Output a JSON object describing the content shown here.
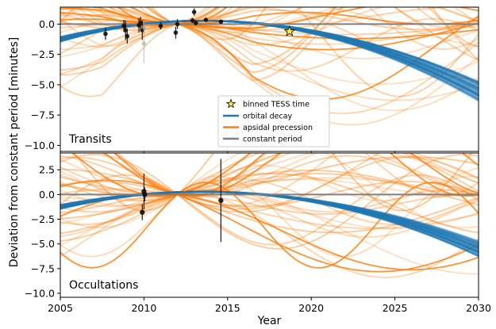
{
  "colors": {
    "decay": "#1f77b4",
    "precession": "#ff7f0e",
    "constant": "#7f7f7f",
    "star": "#ffeb3b"
  },
  "shared": {
    "xlabel": "Year",
    "ylabel": "Deviation from constant period [minutes]",
    "xlim": [
      2005,
      2030
    ],
    "xticks": [
      2005,
      2010,
      2015,
      2020,
      2025,
      2030
    ],
    "tess_time": 2018.7
  },
  "legend": {
    "tess": "binned TESS time",
    "decay": "orbital decay",
    "precession": "apsidal precession",
    "constant": "constant period"
  },
  "chart_data": [
    {
      "type": "line",
      "panel": "top",
      "title": "Transits",
      "xlabel": "Year",
      "ylabel": "Deviation from constant period [minutes]",
      "ylim": [
        -10.5,
        1.4
      ],
      "yticks": [
        0.0,
        -2.5,
        -5.0,
        -7.5,
        -10.0
      ],
      "ytick_labels": [
        "0.0",
        "−2.5",
        "−5.0",
        "−7.5",
        "−10.0"
      ],
      "series": [
        {
          "name": "orbital decay",
          "kind": "band",
          "t0": 2013.5,
          "curv_range": [
            -0.024,
            -0.0185
          ],
          "count": 30
        },
        {
          "name": "apsidal precession",
          "kind": "bundle",
          "count": 40
        },
        {
          "name": "constant period",
          "kind": "line",
          "value": 0
        }
      ],
      "points": [
        {
          "x": 2007.7,
          "y": -0.8,
          "err": 0.5
        },
        {
          "x": 2008.8,
          "y": -0.15,
          "err": 0.5
        },
        {
          "x": 2008.9,
          "y": -0.5,
          "err": 0.8
        },
        {
          "x": 2009.0,
          "y": -1.0,
          "err": 0.6
        },
        {
          "x": 2009.7,
          "y": -0.1,
          "err": 0.6
        },
        {
          "x": 2009.8,
          "y": 0.1,
          "err": 0.5
        },
        {
          "x": 2009.9,
          "y": -0.5,
          "err": 0.8
        },
        {
          "x": 2010.0,
          "y": -1.6,
          "err": 1.6
        },
        {
          "x": 2010.0,
          "y": -0.3,
          "err": 0.5
        },
        {
          "x": 2011.0,
          "y": -0.15,
          "err": 0.3
        },
        {
          "x": 2011.9,
          "y": -0.7,
          "err": 0.5
        },
        {
          "x": 2012.0,
          "y": 0.0,
          "err": 0.4
        },
        {
          "x": 2012.9,
          "y": 0.3,
          "err": 0.2
        },
        {
          "x": 2013.0,
          "y": 1.0,
          "err": 0.3
        },
        {
          "x": 2013.1,
          "y": 0.1,
          "err": 0.2
        },
        {
          "x": 2013.7,
          "y": 0.35,
          "err": 0.15
        },
        {
          "x": 2014.6,
          "y": 0.2,
          "err": 0.15
        }
      ]
    },
    {
      "type": "line",
      "panel": "bottom",
      "title": "Occultations",
      "xlabel": "Year",
      "ylabel": "Deviation from constant period [minutes]",
      "ylim": [
        -10.4,
        4.2
      ],
      "yticks": [
        2.5,
        0.0,
        -2.5,
        -5.0,
        -7.5,
        -10.0
      ],
      "ytick_labels": [
        "2.5",
        "0.0",
        "−2.5",
        "−5.0",
        "−7.5",
        "−10.0"
      ],
      "series": [
        {
          "name": "orbital decay",
          "kind": "band",
          "t0": 2013.5,
          "curv_range": [
            -0.024,
            -0.0185
          ],
          "count": 30
        },
        {
          "name": "apsidal precession",
          "kind": "bundle",
          "count": 40
        },
        {
          "name": "constant period",
          "kind": "line",
          "value": 0
        }
      ],
      "points": [
        {
          "x": 2009.9,
          "y": -1.8,
          "err": 0.8
        },
        {
          "x": 2010.0,
          "y": 0.3,
          "err": 1.8
        },
        {
          "x": 2010.05,
          "y": 0.0,
          "err": 0.7
        },
        {
          "x": 2014.6,
          "y": -0.6,
          "err": 4.2
        }
      ]
    }
  ]
}
